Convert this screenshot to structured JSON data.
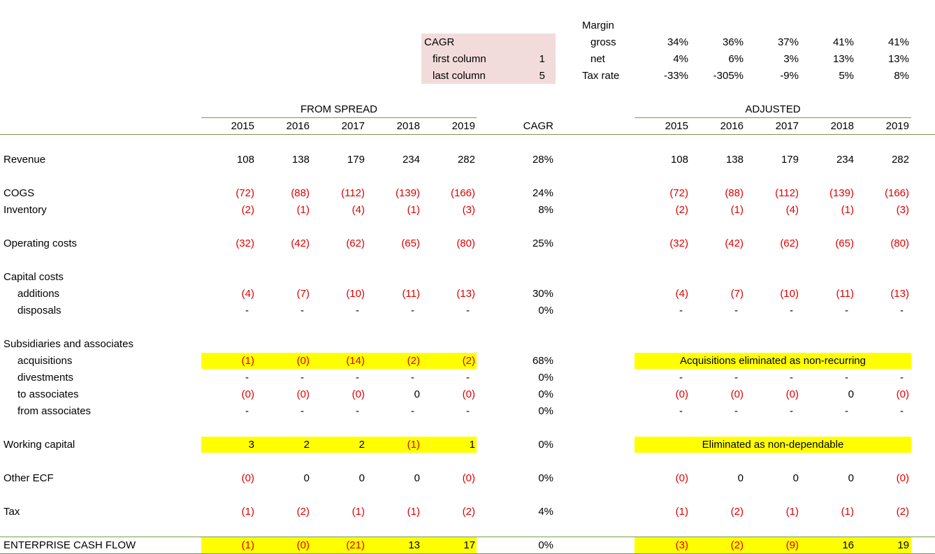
{
  "top_panel": {
    "cagr_title": "CAGR",
    "first_label": "first column",
    "first_value": "1",
    "last_label": "last column",
    "last_value": "5",
    "margin_title": "Margin",
    "gross_label": "gross",
    "gross_values": [
      "34%",
      "36%",
      "37%",
      "41%",
      "41%"
    ],
    "net_label": "net",
    "net_values": [
      "4%",
      "6%",
      "3%",
      "13%",
      "13%"
    ],
    "tax_label": "Tax rate",
    "tax_values": [
      "-33%",
      "-305%",
      "-9%",
      "5%",
      "8%"
    ]
  },
  "headers": {
    "from_spread": "FROM SPREAD",
    "adjusted": "ADJUSTED",
    "cagr": "CAGR",
    "years": [
      "2015",
      "2016",
      "2017",
      "2018",
      "2019"
    ]
  },
  "rows": [
    {
      "label": "Revenue",
      "indent": false,
      "spread": [
        "108",
        "138",
        "179",
        "234",
        "282"
      ],
      "cagr": "28%",
      "adjusted": [
        "108",
        "138",
        "179",
        "234",
        "282"
      ]
    },
    {
      "label": "COGS",
      "indent": false,
      "spread": [
        "(72)",
        "(88)",
        "(112)",
        "(139)",
        "(166)"
      ],
      "cagr": "24%",
      "adjusted": [
        "(72)",
        "(88)",
        "(112)",
        "(139)",
        "(166)"
      ]
    },
    {
      "label": "Inventory",
      "indent": false,
      "spread": [
        "(2)",
        "(1)",
        "(4)",
        "(1)",
        "(3)"
      ],
      "cagr": "8%",
      "adjusted": [
        "(2)",
        "(1)",
        "(4)",
        "(1)",
        "(3)"
      ]
    },
    {
      "label": "Operating costs",
      "indent": false,
      "spread": [
        "(32)",
        "(42)",
        "(62)",
        "(65)",
        "(80)"
      ],
      "cagr": "25%",
      "adjusted": [
        "(32)",
        "(42)",
        "(62)",
        "(65)",
        "(80)"
      ]
    },
    {
      "label": "Capital costs",
      "indent": false,
      "spread": [],
      "cagr": "",
      "adjusted": []
    },
    {
      "label": "additions",
      "indent": true,
      "spread": [
        "(4)",
        "(7)",
        "(10)",
        "(11)",
        "(13)"
      ],
      "cagr": "30%",
      "adjusted": [
        "(4)",
        "(7)",
        "(10)",
        "(11)",
        "(13)"
      ]
    },
    {
      "label": "disposals",
      "indent": true,
      "spread": [
        "-",
        "-",
        "-",
        "-",
        "-"
      ],
      "cagr": "0%",
      "adjusted": [
        "-",
        "-",
        "-",
        "-",
        "-"
      ]
    },
    {
      "label": "Subsidiaries and associates",
      "indent": false,
      "spread": [],
      "cagr": "",
      "adjusted": []
    },
    {
      "label": "acquisitions",
      "indent": true,
      "spread": [
        "(1)",
        "(0)",
        "(14)",
        "(2)",
        "(2)"
      ],
      "cagr": "68%",
      "adjusted_note": "Acquisitions eliminated as non-recurring"
    },
    {
      "label": "divestments",
      "indent": true,
      "spread": [
        "-",
        "-",
        "-",
        "-",
        "-"
      ],
      "cagr": "0%",
      "adjusted": [
        "-",
        "-",
        "-",
        "-",
        "-"
      ]
    },
    {
      "label": "to associates",
      "indent": true,
      "spread": [
        "(0)",
        "(0)",
        "(0)",
        "0",
        "(0)"
      ],
      "cagr": "0%",
      "adjusted": [
        "(0)",
        "(0)",
        "(0)",
        "0",
        "(0)"
      ]
    },
    {
      "label": "from associates",
      "indent": true,
      "spread": [
        "-",
        "-",
        "-",
        "-",
        "-"
      ],
      "cagr": "0%",
      "adjusted": [
        "-",
        "-",
        "-",
        "-",
        "-"
      ]
    },
    {
      "label": "Working capital",
      "indent": false,
      "spread": [
        "3",
        "2",
        "2",
        "(1)",
        "1"
      ],
      "cagr": "0%",
      "adjusted_note": "Eliminated as non-dependable"
    },
    {
      "label": "Other ECF",
      "indent": false,
      "spread": [
        "(0)",
        "0",
        "0",
        "0",
        "(0)"
      ],
      "cagr": "0%",
      "adjusted": [
        "(0)",
        "0",
        "0",
        "0",
        "(0)"
      ]
    },
    {
      "label": "Tax",
      "indent": false,
      "spread": [
        "(1)",
        "(2)",
        "(1)",
        "(1)",
        "(2)"
      ],
      "cagr": "4%",
      "adjusted": [
        "(1)",
        "(2)",
        "(1)",
        "(1)",
        "(2)"
      ]
    },
    {
      "label": "ENTERPRISE CASH FLOW",
      "indent": false,
      "spread": [
        "(1)",
        "(0)",
        "(21)",
        "13",
        "17"
      ],
      "cagr": "0%",
      "adjusted": [
        "(3)",
        "(2)",
        "(9)",
        "16",
        "19"
      ]
    }
  ],
  "colors": {
    "highlight": "#ffff00",
    "pink": "#f2dcdb",
    "negative": "#e00000",
    "rule": "#7a9a4a"
  }
}
